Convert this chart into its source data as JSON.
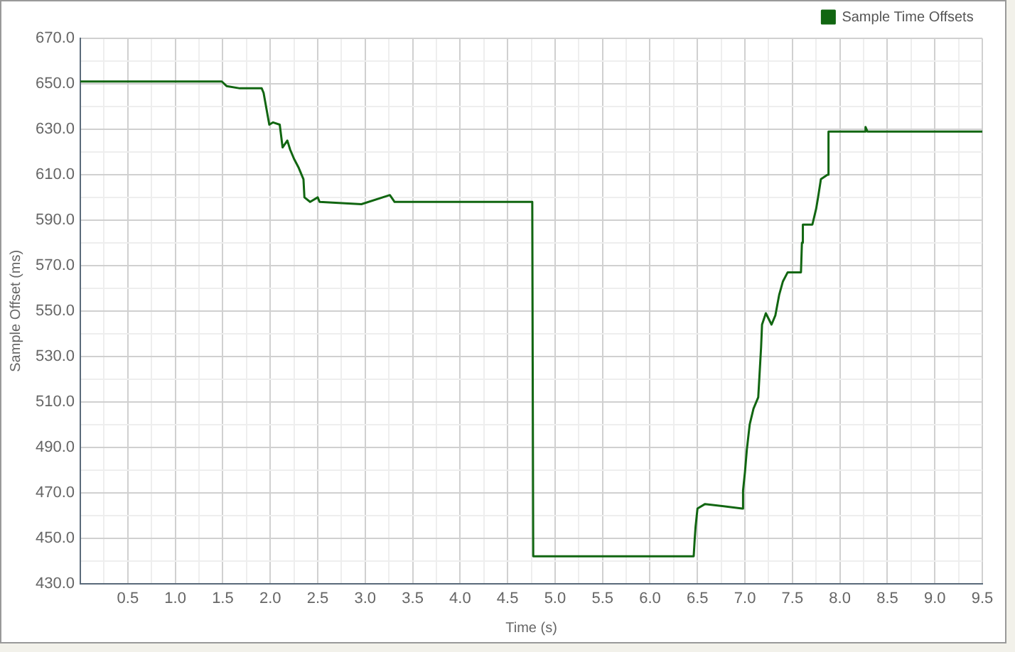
{
  "chart_data": {
    "type": "line",
    "xlabel": "Time (s)",
    "ylabel": "Sample Offset (ms)",
    "legend": "top right",
    "grid": true,
    "marker": "none",
    "line_style": "solid",
    "xlim": [
      0,
      9.5
    ],
    "ylim": [
      430,
      670
    ],
    "xticks": [
      {
        "value": 0,
        "label": null
      },
      {
        "value": 0.25,
        "label": null
      },
      {
        "value": 0.5,
        "label": "0.5"
      },
      {
        "value": 0.75,
        "label": null
      },
      {
        "value": 1,
        "label": "1.0"
      },
      {
        "value": 1.25,
        "label": null
      },
      {
        "value": 1.5,
        "label": "1.5"
      },
      {
        "value": 1.75,
        "label": null
      },
      {
        "value": 2,
        "label": "2.0"
      },
      {
        "value": 2.25,
        "label": null
      },
      {
        "value": 2.5,
        "label": "2.5"
      },
      {
        "value": 2.75,
        "label": null
      },
      {
        "value": 3,
        "label": "3.0"
      },
      {
        "value": 3.25,
        "label": null
      },
      {
        "value": 3.5,
        "label": "3.5"
      },
      {
        "value": 3.75,
        "label": null
      },
      {
        "value": 4,
        "label": "4.0"
      },
      {
        "value": 4.25,
        "label": null
      },
      {
        "value": 4.5,
        "label": "4.5"
      },
      {
        "value": 4.75,
        "label": null
      },
      {
        "value": 5,
        "label": "5.0"
      },
      {
        "value": 5.25,
        "label": null
      },
      {
        "value": 5.5,
        "label": "5.5"
      },
      {
        "value": 5.75,
        "label": null
      },
      {
        "value": 6,
        "label": "6.0"
      },
      {
        "value": 6.25,
        "label": null
      },
      {
        "value": 6.5,
        "label": "6.5"
      },
      {
        "value": 6.75,
        "label": null
      },
      {
        "value": 7,
        "label": "7.0"
      },
      {
        "value": 7.25,
        "label": null
      },
      {
        "value": 7.5,
        "label": "7.5"
      },
      {
        "value": 7.75,
        "label": null
      },
      {
        "value": 8,
        "label": "8.0"
      },
      {
        "value": 8.25,
        "label": null
      },
      {
        "value": 8.5,
        "label": "8.5"
      },
      {
        "value": 8.75,
        "label": null
      },
      {
        "value": 9,
        "label": "9.0"
      },
      {
        "value": 9.25,
        "label": null
      },
      {
        "value": 9.5,
        "label": "9.5"
      }
    ],
    "yticks": [
      {
        "value": 430,
        "label": "430.0"
      },
      {
        "value": 440,
        "label": null
      },
      {
        "value": 450,
        "label": "450.0"
      },
      {
        "value": 460,
        "label": null
      },
      {
        "value": 470,
        "label": "470.0"
      },
      {
        "value": 480,
        "label": null
      },
      {
        "value": 490,
        "label": "490.0"
      },
      {
        "value": 500,
        "label": null
      },
      {
        "value": 510,
        "label": "510.0"
      },
      {
        "value": 520,
        "label": null
      },
      {
        "value": 530,
        "label": "530.0"
      },
      {
        "value": 540,
        "label": null
      },
      {
        "value": 550,
        "label": "550.0"
      },
      {
        "value": 560,
        "label": null
      },
      {
        "value": 570,
        "label": "570.0"
      },
      {
        "value": 580,
        "label": null
      },
      {
        "value": 590,
        "label": "590.0"
      },
      {
        "value": 600,
        "label": null
      },
      {
        "value": 610,
        "label": "610.0"
      },
      {
        "value": 620,
        "label": null
      },
      {
        "value": 630,
        "label": "630.0"
      },
      {
        "value": 640,
        "label": null
      },
      {
        "value": 650,
        "label": "650.0"
      },
      {
        "value": 660,
        "label": null
      },
      {
        "value": 670,
        "label": "670.0"
      }
    ],
    "x": [
      0,
      1.49,
      1.54,
      1.68,
      1.91,
      1.93,
      1.99,
      2.03,
      2.1,
      2.13,
      2.18,
      2.21,
      2.25,
      2.3,
      2.35,
      2.36,
      2.42,
      2.5,
      2.52,
      2.96,
      3.26,
      3.31,
      4.76,
      4.77,
      6.46,
      6.47,
      6.48,
      6.5,
      6.58,
      6.97,
      6.98,
      7.0,
      7.02,
      7.05,
      7.09,
      7.14,
      7.17,
      7.18,
      7.22,
      7.28,
      7.32,
      7.36,
      7.4,
      7.45,
      7.59,
      7.6,
      7.61,
      7.71,
      7.75,
      7.77,
      7.8,
      7.87,
      7.88,
      8.26,
      8.27,
      8.29,
      9.5
    ],
    "series": [
      {
        "name": "Sample Time Offsets",
        "color": "#116611",
        "values": [
          651,
          651,
          649,
          648,
          648,
          646,
          632,
          633,
          632,
          622,
          625,
          621,
          617,
          613,
          608,
          600,
          598,
          600,
          598,
          597,
          601,
          598,
          598,
          442,
          442,
          449,
          455,
          463,
          465,
          463,
          471,
          479,
          489,
          500,
          507,
          512,
          534,
          544,
          549,
          544,
          548,
          557,
          563,
          567,
          567,
          580,
          588,
          588,
          595,
          600,
          608,
          610,
          629,
          629,
          631,
          629,
          629
        ]
      }
    ]
  }
}
